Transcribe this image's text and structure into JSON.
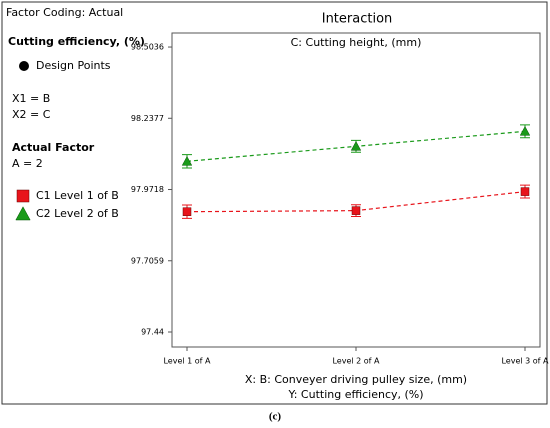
{
  "chart_data": {
    "type": "line",
    "title": "Interaction",
    "factor_coding": "Factor Coding: Actual",
    "response": "Cutting efficiency, (%)",
    "design_points_label": "Design Points",
    "x1": "X1 = B",
    "x2": "X2 = C",
    "actual_factor_heading": "Actual Factor",
    "actual_factor": "A = 2",
    "legend_title": "C: Cutting height, (mm)",
    "x_label": "X: B: Conveyer driving pulley size, (mm)",
    "y_label": "Y: Cutting efficiency, (%)",
    "caption": "(c)",
    "categories": [
      "Level 1 of A",
      "Level 2 of A",
      "Level 3 of A"
    ],
    "series": [
      {
        "name": "C1 Level 1 of B",
        "color": "#e8141b",
        "marker": "square",
        "values": [
          97.889,
          97.893,
          97.964
        ],
        "errors": [
          0.025,
          0.022,
          0.024
        ]
      },
      {
        "name": "C2 Level 2 of B",
        "color": "#1a9a1a",
        "marker": "triangle",
        "values": [
          98.077,
          98.133,
          98.189
        ],
        "errors": [
          0.025,
          0.022,
          0.024
        ]
      }
    ],
    "ylim": [
      97.384,
      98.556
    ],
    "yticks": [
      97.44,
      97.7059,
      97.9718,
      98.2377,
      98.5036
    ],
    "grid": false
  }
}
